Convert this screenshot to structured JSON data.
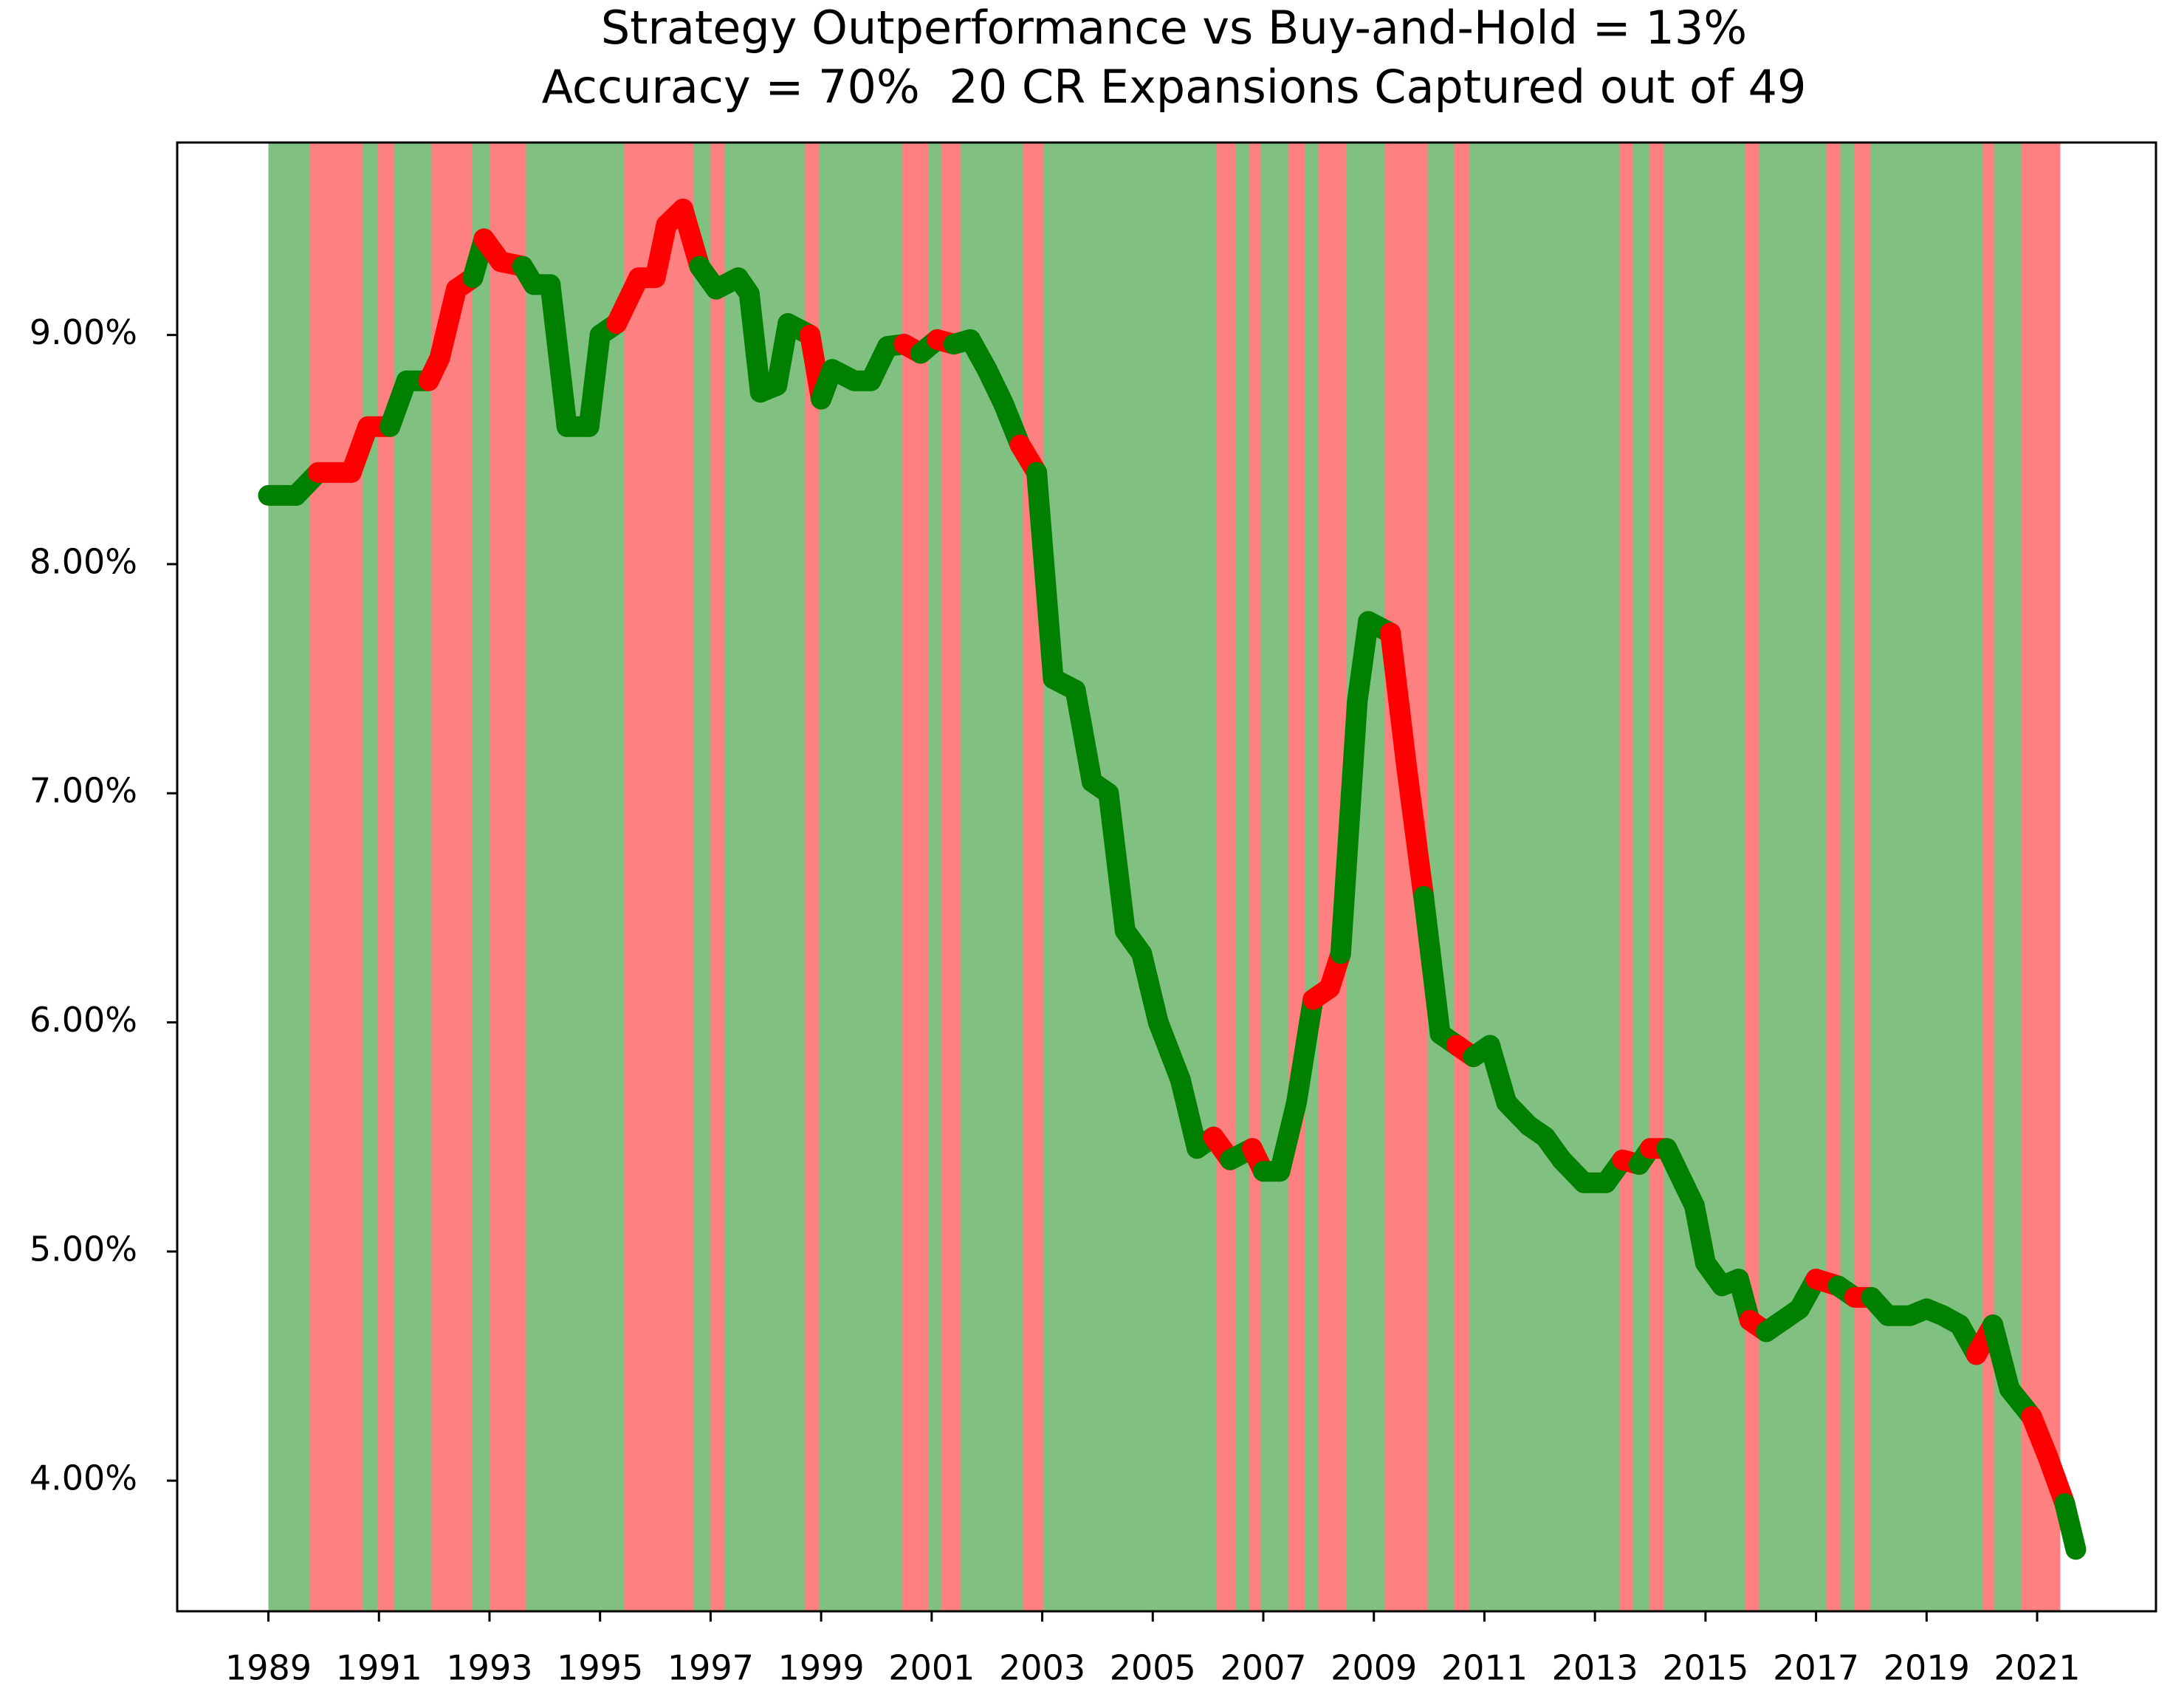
{
  "chart_data": {
    "type": "line",
    "title": "Strategy Outperformance vs Buy-and-Hold = 13%",
    "subtitle": "Accuracy = 70%  20 CR Expansions Captured out of 49",
    "xlim": [
      1987.35,
      2023.15
    ],
    "xticks": [
      1989,
      1991,
      1993,
      1995,
      1997,
      1999,
      2001,
      2003,
      2005,
      2007,
      2009,
      2011,
      2013,
      2015,
      2017,
      2019,
      2021
    ],
    "ylim": [
      3.43,
      9.84
    ],
    "yticks": [
      {
        "value": 4,
        "label": "4.00%"
      },
      {
        "value": 5,
        "label": "5.00%"
      },
      {
        "value": 6,
        "label": "6.00%"
      },
      {
        "value": 7,
        "label": "7.00%"
      },
      {
        "value": 8,
        "label": "8.00%"
      },
      {
        "value": 9,
        "label": "9.00%"
      }
    ],
    "background_band": {
      "start": 1989,
      "end": 2021.42,
      "color": "#80c080"
    },
    "red_band_color": "#ff8080",
    "red_bands": [
      {
        "start": 1989.75,
        "end": 1990.7
      },
      {
        "start": 1990.98,
        "end": 1991.28
      },
      {
        "start": 1991.95,
        "end": 1992.68
      },
      {
        "start": 1993.0,
        "end": 1993.66
      },
      {
        "start": 1995.43,
        "end": 1996.69
      },
      {
        "start": 1997.0,
        "end": 1997.26
      },
      {
        "start": 1998.71,
        "end": 1998.96
      },
      {
        "start": 2000.47,
        "end": 2000.94
      },
      {
        "start": 2001.17,
        "end": 2001.52
      },
      {
        "start": 2002.65,
        "end": 2003.02
      },
      {
        "start": 2006.15,
        "end": 2006.5
      },
      {
        "start": 2006.75,
        "end": 2006.95
      },
      {
        "start": 2007.45,
        "end": 2007.75
      },
      {
        "start": 2008.0,
        "end": 2008.5
      },
      {
        "start": 2009.2,
        "end": 2009.98
      },
      {
        "start": 2010.46,
        "end": 2010.73
      },
      {
        "start": 2013.44,
        "end": 2013.69
      },
      {
        "start": 2013.99,
        "end": 2014.24
      },
      {
        "start": 2015.71,
        "end": 2015.97
      },
      {
        "start": 2017.19,
        "end": 2017.44
      },
      {
        "start": 2017.69,
        "end": 2017.99
      },
      {
        "start": 2020.02,
        "end": 2020.22
      },
      {
        "start": 2020.72,
        "end": 2021.42
      }
    ],
    "line_color_green": "#008000",
    "line_color_red": "#ff0000",
    "x": [
      1989.0,
      1989.5,
      1989.9,
      1990.5,
      1990.8,
      1991.2,
      1991.5,
      1991.9,
      1992.1,
      1992.4,
      1992.7,
      1992.9,
      1993.2,
      1993.6,
      1993.8,
      1994.1,
      1994.4,
      1994.8,
      1995.0,
      1995.3,
      1995.7,
      1996.0,
      1996.2,
      1996.5,
      1996.8,
      1997.1,
      1997.5,
      1997.7,
      1997.9,
      1998.2,
      1998.4,
      1998.8,
      1999.0,
      1999.2,
      1999.6,
      1999.9,
      2000.2,
      2000.5,
      2000.8,
      2001.1,
      2001.4,
      2001.7,
      2002.0,
      2002.3,
      2002.6,
      2002.9,
      2003.2,
      2003.6,
      2003.9,
      2004.2,
      2004.5,
      2004.8,
      2005.1,
      2005.5,
      2005.8,
      2006.1,
      2006.4,
      2006.8,
      2007.0,
      2007.3,
      2007.6,
      2007.9,
      2008.2,
      2008.4,
      2008.7,
      2008.9,
      2009.3,
      2009.6,
      2009.9,
      2010.2,
      2010.5,
      2010.8,
      2011.1,
      2011.4,
      2011.8,
      2012.1,
      2012.4,
      2012.8,
      2013.2,
      2013.5,
      2013.8,
      2014.0,
      2014.3,
      2014.6,
      2014.8,
      2015.0,
      2015.3,
      2015.6,
      2015.8,
      2016.1,
      2016.4,
      2016.7,
      2017.0,
      2017.4,
      2017.7,
      2018.0,
      2018.3,
      2018.7,
      2019.0,
      2019.3,
      2019.6,
      2019.9,
      2020.2,
      2020.5,
      2020.9,
      2021.2,
      2021.5,
      2021.7
    ],
    "values": [
      8.3,
      8.3,
      8.4,
      8.4,
      8.6,
      8.6,
      8.8,
      8.8,
      8.9,
      9.2,
      9.25,
      9.42,
      9.32,
      9.3,
      9.22,
      9.22,
      8.6,
      8.6,
      9.0,
      9.05,
      9.25,
      9.25,
      9.48,
      9.55,
      9.3,
      9.2,
      9.25,
      9.18,
      8.75,
      8.78,
      9.05,
      9.0,
      8.72,
      8.85,
      8.8,
      8.8,
      8.95,
      8.96,
      8.92,
      8.98,
      8.96,
      8.98,
      8.85,
      8.7,
      8.52,
      8.4,
      7.5,
      7.45,
      7.05,
      7.0,
      6.4,
      6.3,
      6.0,
      5.75,
      5.45,
      5.5,
      5.4,
      5.45,
      5.35,
      5.35,
      5.65,
      6.1,
      6.15,
      6.3,
      7.4,
      7.75,
      7.7,
      7.1,
      6.55,
      5.95,
      5.9,
      5.85,
      5.9,
      5.65,
      5.55,
      5.5,
      5.4,
      5.3,
      5.3,
      5.4,
      5.38,
      5.45,
      5.45,
      5.3,
      5.2,
      4.95,
      4.85,
      4.88,
      4.7,
      4.65,
      4.7,
      4.75,
      4.88,
      4.85,
      4.8,
      4.8,
      4.72,
      4.72,
      4.75,
      4.72,
      4.68,
      4.55,
      4.68,
      4.4,
      4.28,
      4.1,
      3.9,
      3.7
    ]
  }
}
